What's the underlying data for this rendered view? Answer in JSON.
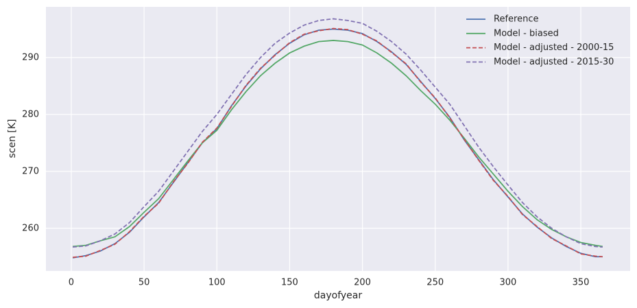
{
  "chart_data": {
    "type": "line",
    "xlabel": "dayofyear",
    "ylabel": "scen [K]",
    "x": [
      1,
      10,
      20,
      30,
      40,
      50,
      60,
      70,
      80,
      90,
      100,
      110,
      120,
      130,
      140,
      150,
      160,
      170,
      180,
      190,
      200,
      210,
      220,
      230,
      240,
      250,
      260,
      270,
      280,
      290,
      300,
      310,
      320,
      330,
      340,
      350,
      360,
      365
    ],
    "series": [
      {
        "name": "Reference",
        "color": "#4c72b0",
        "linestyle": "solid",
        "values": [
          254.8,
          255.2,
          256.0,
          257.3,
          259.3,
          262.0,
          264.5,
          268.0,
          271.5,
          275.0,
          277.5,
          281.5,
          285.0,
          288.0,
          290.5,
          292.5,
          294.0,
          294.8,
          295.0,
          294.8,
          294.2,
          292.8,
          291.0,
          288.8,
          285.8,
          282.8,
          279.5,
          275.5,
          272.0,
          268.5,
          265.5,
          262.5,
          260.2,
          258.3,
          256.8,
          255.6,
          255.0,
          255.0
        ]
      },
      {
        "name": "Model - biased",
        "color": "#55a868",
        "linestyle": "solid",
        "values": [
          256.8,
          257.0,
          257.8,
          258.5,
          260.3,
          262.8,
          265.2,
          268.5,
          271.8,
          275.0,
          277.2,
          280.8,
          284.0,
          286.8,
          289.0,
          290.8,
          292.0,
          292.8,
          293.0,
          292.8,
          292.2,
          290.8,
          289.0,
          286.8,
          284.2,
          281.8,
          279.0,
          275.8,
          272.5,
          269.5,
          266.5,
          263.8,
          261.5,
          259.8,
          258.5,
          257.5,
          257.0,
          256.8
        ]
      },
      {
        "name": "Model - adjusted - 2000-15",
        "color": "#c44e52",
        "linestyle": "dashed",
        "values": [
          254.9,
          255.1,
          256.1,
          257.2,
          259.4,
          262.1,
          264.4,
          268.1,
          271.4,
          275.1,
          277.6,
          281.4,
          285.1,
          288.1,
          290.4,
          292.6,
          294.1,
          294.7,
          295.1,
          294.9,
          294.1,
          292.9,
          290.9,
          288.9,
          285.7,
          282.9,
          279.4,
          275.6,
          271.9,
          268.4,
          265.6,
          262.4,
          260.3,
          258.2,
          256.9,
          255.5,
          255.1,
          255.0
        ]
      },
      {
        "name": "Model - adjusted - 2015-30",
        "color": "#8172b2",
        "linestyle": "dashed",
        "values": [
          256.7,
          256.9,
          257.8,
          259.0,
          261.0,
          263.8,
          266.5,
          270.0,
          273.5,
          277.0,
          280.0,
          283.5,
          287.0,
          290.0,
          292.5,
          294.3,
          295.7,
          296.5,
          296.8,
          296.5,
          296.0,
          294.6,
          292.8,
          290.6,
          287.8,
          284.8,
          281.8,
          278.0,
          274.2,
          270.8,
          267.6,
          264.5,
          262.0,
          260.0,
          258.5,
          257.3,
          256.8,
          256.7
        ]
      }
    ],
    "xlim": [
      -17.4,
      383.9
    ],
    "ylim": [
      252.5,
      298.9
    ],
    "xticks": [
      0,
      50,
      100,
      150,
      200,
      250,
      300,
      350
    ],
    "yticks": [
      260,
      270,
      280,
      290
    ],
    "grid": true,
    "legend": "upper right"
  }
}
